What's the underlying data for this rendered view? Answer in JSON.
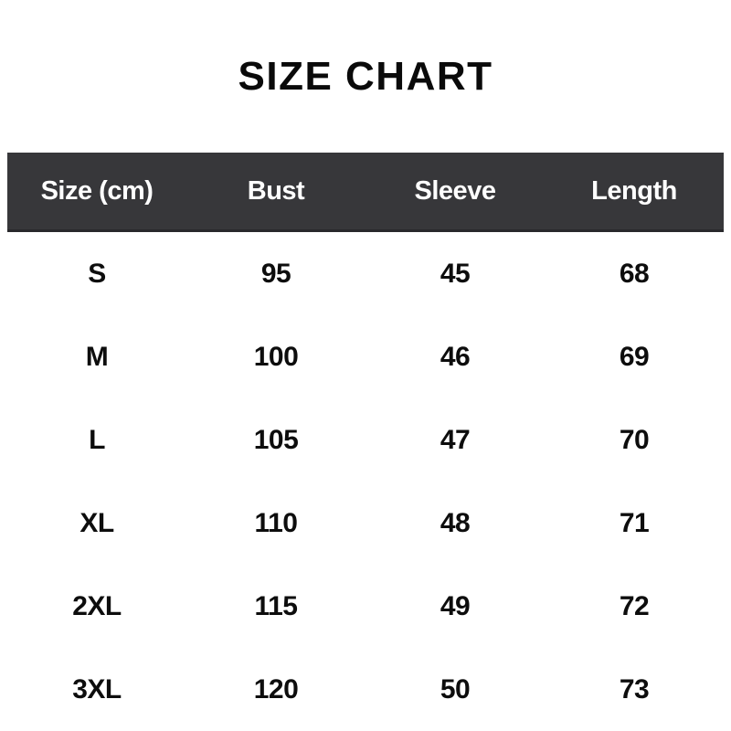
{
  "title": "SIZE CHART",
  "colors": {
    "page_bg": "#ffffff",
    "header_bg": "#37373a",
    "header_border": "#29292c",
    "header_text": "#ffffff",
    "body_text": "#0d0d0d"
  },
  "table": {
    "columns": [
      "Size (cm)",
      "Bust",
      "Sleeve",
      "Length"
    ],
    "rows": [
      {
        "cells": [
          "S",
          "95",
          "45",
          "68"
        ]
      },
      {
        "cells": [
          "M",
          "100",
          "46",
          "69"
        ]
      },
      {
        "cells": [
          "L",
          "105",
          "47",
          "70"
        ]
      },
      {
        "cells": [
          "XL",
          "110",
          "48",
          "71"
        ]
      },
      {
        "cells": [
          "2XL",
          "115",
          "49",
          "72"
        ]
      },
      {
        "cells": [
          "3XL",
          "120",
          "50",
          "73"
        ]
      }
    ]
  },
  "chart_data": {
    "type": "table",
    "title": "SIZE CHART",
    "units": "cm",
    "columns": [
      "Size (cm)",
      "Bust",
      "Sleeve",
      "Length"
    ],
    "rows": [
      [
        "S",
        95,
        45,
        68
      ],
      [
        "M",
        100,
        46,
        69
      ],
      [
        "L",
        105,
        47,
        70
      ],
      [
        "XL",
        110,
        48,
        71
      ],
      [
        "2XL",
        115,
        49,
        72
      ],
      [
        "3XL",
        120,
        50,
        73
      ]
    ]
  }
}
